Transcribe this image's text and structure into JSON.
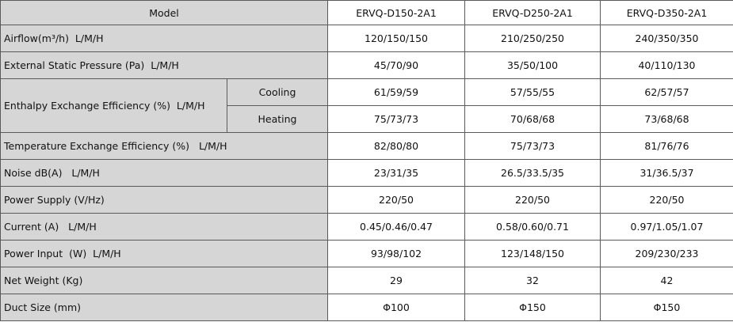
{
  "table": {
    "header": [
      "Model",
      "ERVQ-D150-2A1",
      "ERVQ-D250-2A1",
      "ERVQ-D350-2A1"
    ],
    "rows": [
      {
        "label": "Airflow(m³/h)  L/M/H",
        "values": [
          "120/150/150",
          "210/250/250",
          "240/350/350"
        ]
      },
      {
        "label": "External Static Pressure (Pa)  L/M/H",
        "values": [
          "45/70/90",
          "35/50/100",
          "40/110/130"
        ]
      },
      {
        "label": "Enthalpy Exchange Efficiency (%)  L/M/H",
        "subrows": [
          {
            "label": "Cooling",
            "values": [
              "61/59/59",
              "57/55/55",
              "62/57/57"
            ]
          },
          {
            "label": "Heating",
            "values": [
              "75/73/73",
              "70/68/68",
              "73/68/68"
            ]
          }
        ]
      },
      {
        "label": "Temperature Exchange Efficiency (%)   L/M/H",
        "values": [
          "82/80/80",
          "75/73/73",
          "81/76/76"
        ]
      },
      {
        "label": "Noise dB(A)   L/M/H",
        "values": [
          "23/31/35",
          "26.5/33.5/35",
          "31/36.5/37"
        ]
      },
      {
        "label": "Power Supply (V/Hz)",
        "values": [
          "220/50",
          "220/50",
          "220/50"
        ]
      },
      {
        "label": "Current (A)   L/M/H",
        "values": [
          "0.45/0.46/0.47",
          "0.58/0.60/0.71",
          "0.97/1.05/1.07"
        ]
      },
      {
        "label": "Power Input  (W)  L/M/H",
        "values": [
          "93/98/102",
          "123/148/150",
          "209/230/233"
        ]
      },
      {
        "label": "Net Weight (Kg)",
        "values": [
          "29",
          "32",
          "42"
        ]
      },
      {
        "label": "Duct Size (mm)",
        "values": [
          "Φ100",
          "Φ150",
          "Φ150"
        ]
      }
    ]
  }
}
